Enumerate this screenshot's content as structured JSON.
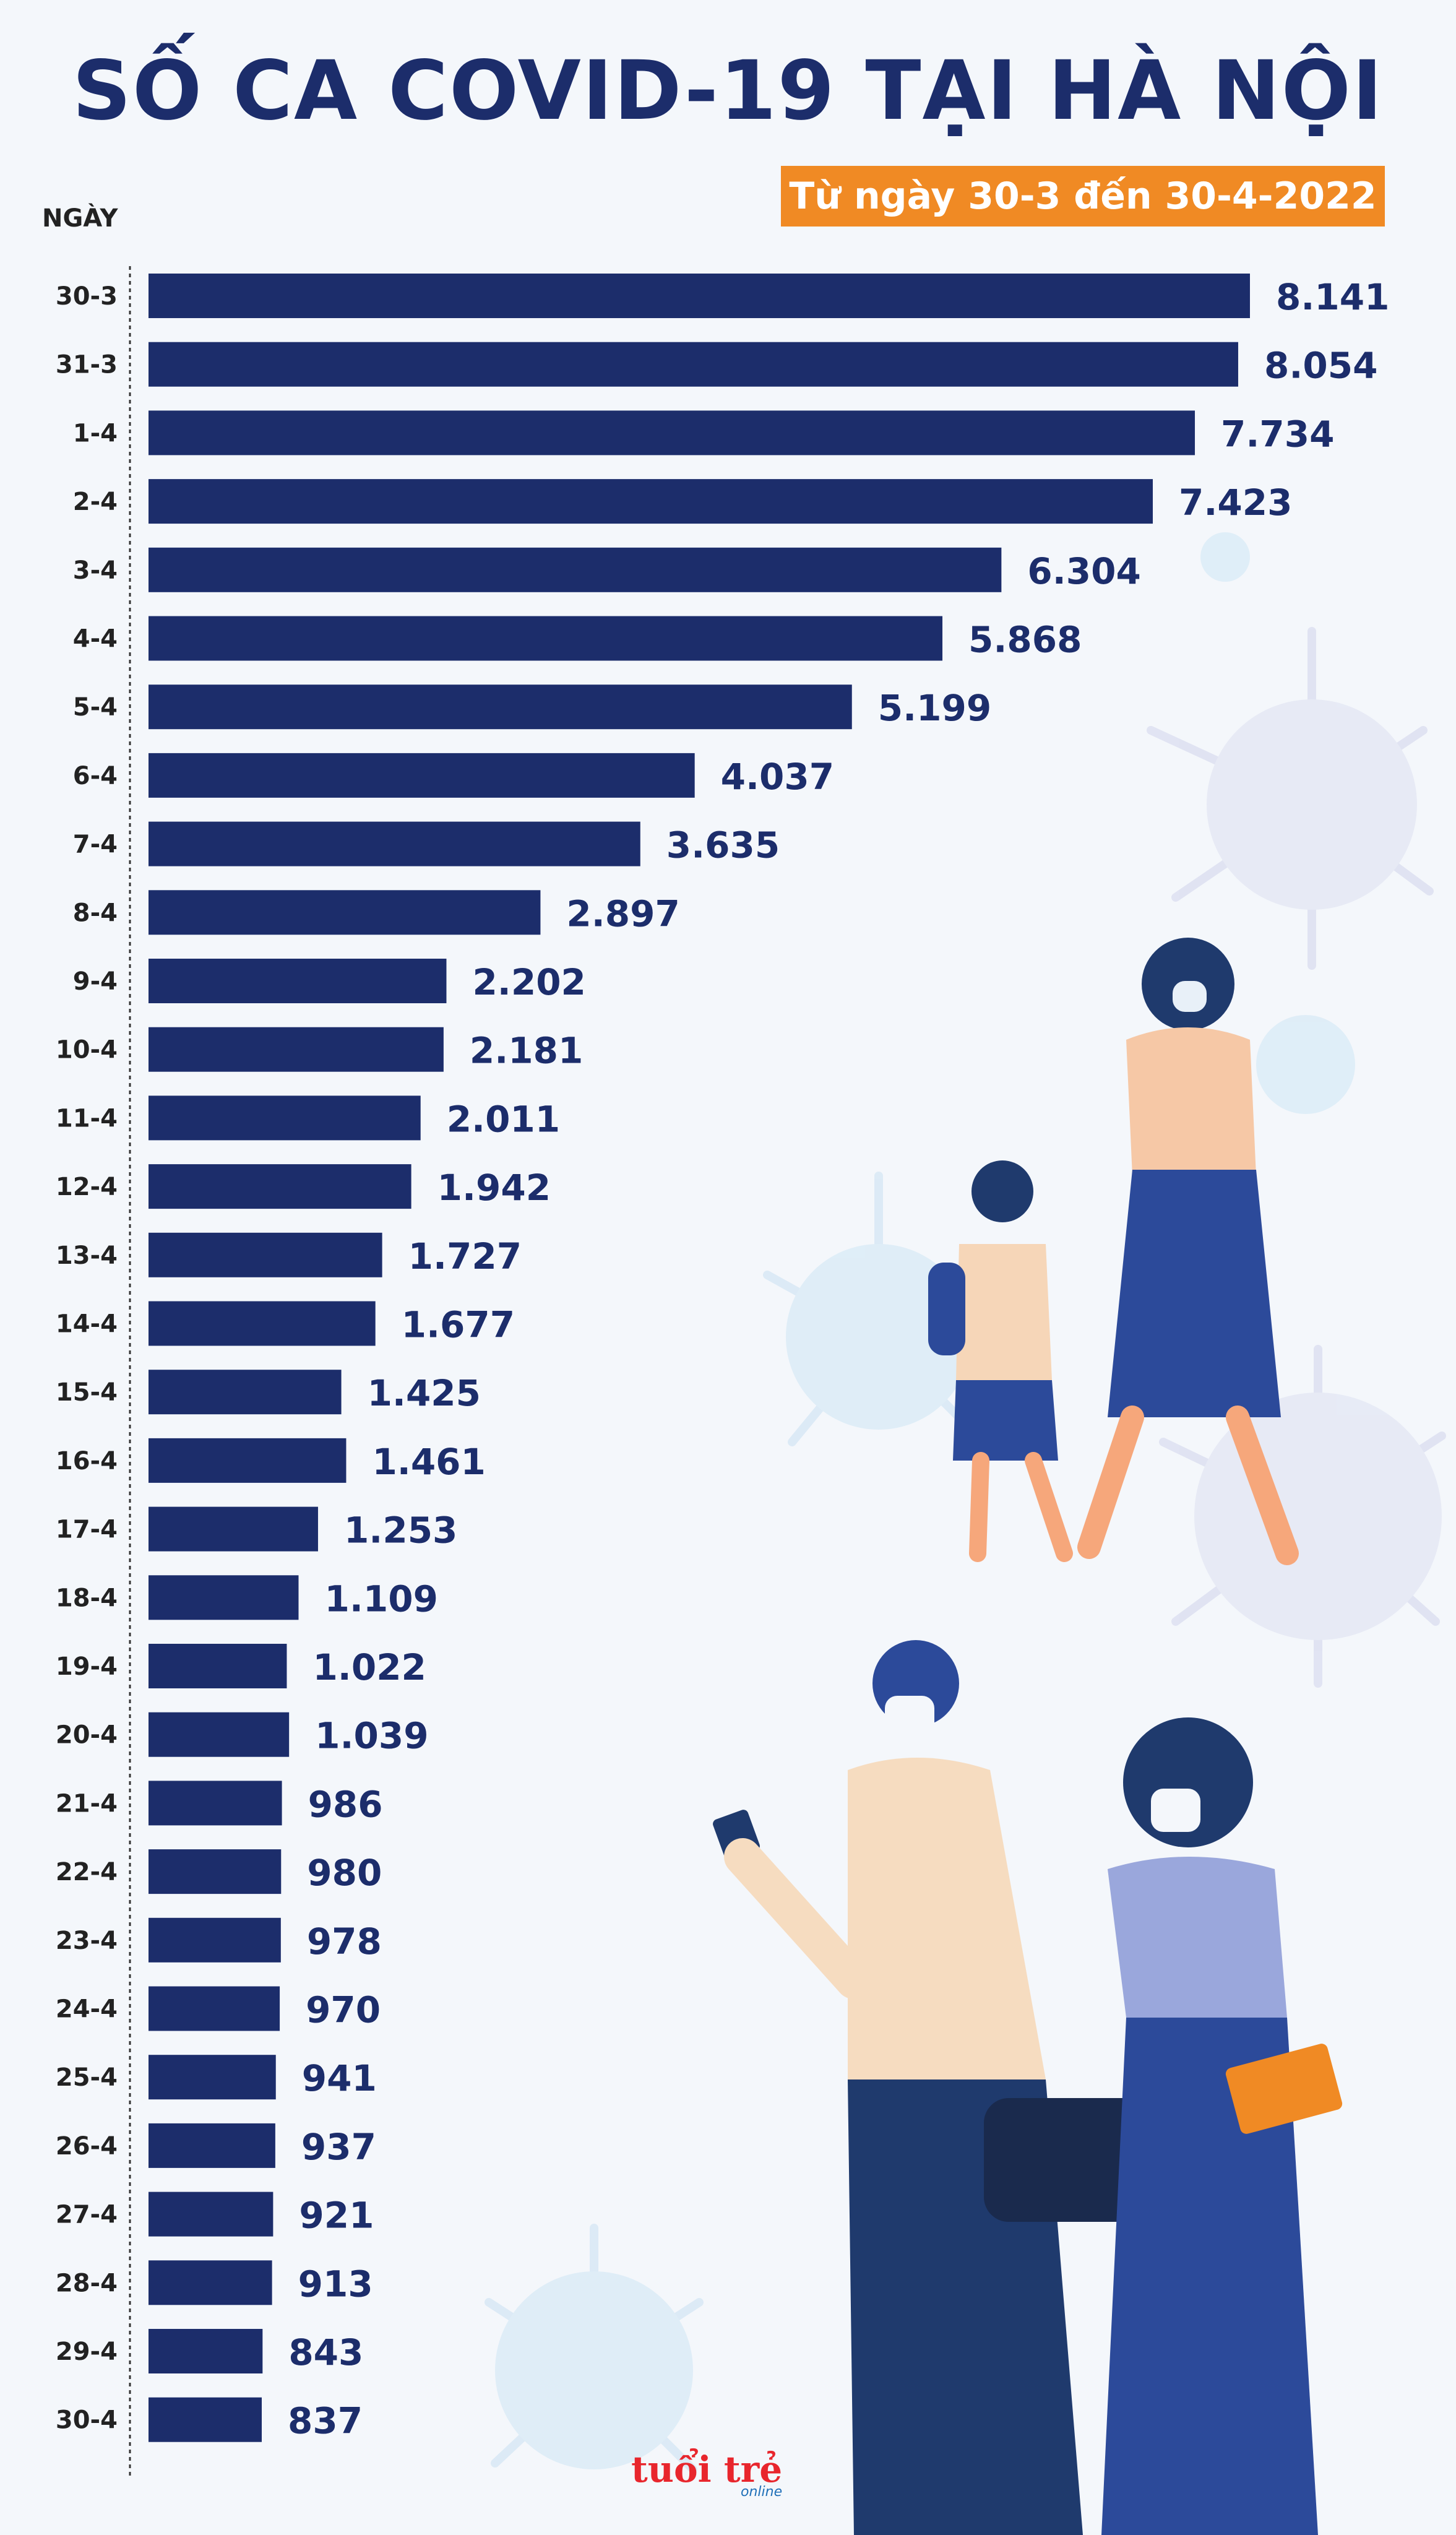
{
  "title": "SỐ CA COVID-19 TẠI HÀ NỘI",
  "subtitle": "Từ ngày 30-3 đến 30-4-2022",
  "logo_main": "tuổi trẻ",
  "logo_sub": "online",
  "colors": {
    "bar": "#1c2d6b",
    "label": "#1c2d6b",
    "accent": "#f08a24",
    "logo": "#e8262d"
  },
  "chart_data": {
    "type": "bar",
    "orientation": "horizontal",
    "title": "SỐ CA COVID-19 TẠI HÀ NỘI",
    "subtitle": "Từ ngày 30-3 đến 30-4-2022",
    "ylabel": "NGÀY",
    "xlabel": "",
    "xlim": [
      0,
      8141
    ],
    "categories": [
      "30-3",
      "31-3",
      "1-4",
      "2-4",
      "3-4",
      "4-4",
      "5-4",
      "6-4",
      "7-4",
      "8-4",
      "9-4",
      "10-4",
      "11-4",
      "12-4",
      "13-4",
      "14-4",
      "15-4",
      "16-4",
      "17-4",
      "18-4",
      "19-4",
      "20-4",
      "21-4",
      "22-4",
      "23-4",
      "24-4",
      "25-4",
      "26-4",
      "27-4",
      "28-4",
      "29-4",
      "30-4"
    ],
    "values": [
      8141,
      8054,
      7734,
      7423,
      6304,
      5868,
      5199,
      4037,
      3635,
      2897,
      2202,
      2181,
      2011,
      1942,
      1727,
      1677,
      1425,
      1461,
      1253,
      1109,
      1022,
      1039,
      986,
      980,
      978,
      970,
      941,
      937,
      921,
      913,
      843,
      837
    ],
    "value_labels": [
      "8.141",
      "8.054",
      "7.734",
      "7.423",
      "6.304",
      "5.868",
      "5.199",
      "4.037",
      "3.635",
      "2.897",
      "2.202",
      "2.181",
      "2.011",
      "1.942",
      "1.727",
      "1.677",
      "1.425",
      "1.461",
      "1.253",
      "1.109",
      "1.022",
      "1.039",
      "986",
      "980",
      "978",
      "970",
      "941",
      "937",
      "921",
      "913",
      "843",
      "837"
    ]
  }
}
